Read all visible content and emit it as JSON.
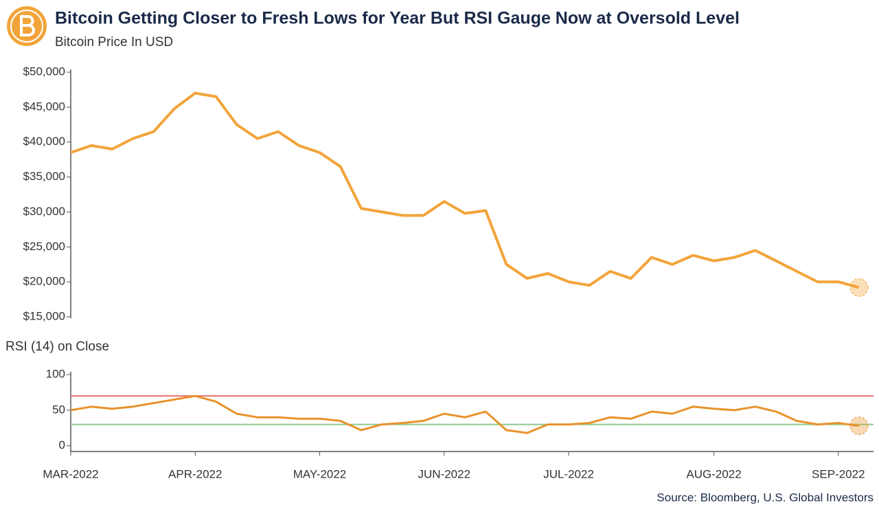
{
  "header": {
    "title": "Bitcoin Getting Closer to Fresh Lows for Year But RSI Gauge Now at Oversold Level",
    "subtitle": "Bitcoin Price In USD"
  },
  "chart_data": [
    {
      "type": "line",
      "color": "#f2a43a",
      "values": [
        38500,
        39500,
        39000,
        40500,
        41500,
        44800,
        47000,
        46500,
        42500,
        40500,
        41500,
        39500,
        38500,
        36500,
        30500,
        30000,
        29500,
        29500,
        31500,
        29800,
        30200,
        22500,
        20500,
        21200,
        20000,
        19500,
        21500,
        20500,
        23500,
        22500,
        23800,
        23000,
        23500,
        24500,
        23000,
        21500,
        20000,
        20000,
        19200
      ],
      "ylim": [
        15000,
        50000
      ],
      "yticks": [
        {
          "value": 15000,
          "label": "$15,000"
        },
        {
          "value": 20000,
          "label": "$20,000"
        },
        {
          "value": 25000,
          "label": "$25,000"
        },
        {
          "value": 30000,
          "label": "$30,000"
        },
        {
          "value": 35000,
          "label": "$35,000"
        },
        {
          "value": 40000,
          "label": "$40,000"
        },
        {
          "value": 45000,
          "label": "$45,000"
        },
        {
          "value": 50000,
          "label": "$50,000"
        }
      ]
    },
    {
      "type": "line",
      "title": "RSI (14) on Close",
      "color": "#e8922a",
      "categories": [
        "MAR-2022",
        null,
        null,
        null,
        null,
        null,
        "APR-2022",
        null,
        null,
        null,
        null,
        null,
        "MAY-2022",
        null,
        null,
        null,
        null,
        null,
        "JUN-2022",
        null,
        null,
        null,
        null,
        null,
        "JUL-2022",
        null,
        null,
        null,
        null,
        null,
        null,
        "AUG-2022",
        null,
        null,
        null,
        null,
        null,
        "SEP-2022",
        null
      ],
      "values": [
        50,
        55,
        52,
        55,
        60,
        65,
        70,
        62,
        45,
        40,
        40,
        38,
        38,
        35,
        22,
        30,
        32,
        35,
        45,
        40,
        48,
        22,
        18,
        30,
        30,
        32,
        40,
        38,
        48,
        45,
        55,
        52,
        50,
        55,
        48,
        35,
        30,
        32,
        28
      ],
      "ylim": [
        -8,
        100
      ],
      "yticks": [
        0,
        50,
        100
      ],
      "reference_lines": [
        {
          "value": 70,
          "color": "#e87070"
        },
        {
          "value": 30,
          "color": "#8cc98c"
        }
      ]
    }
  ],
  "source": "Source: Bloomberg, U.S. Global Investors"
}
